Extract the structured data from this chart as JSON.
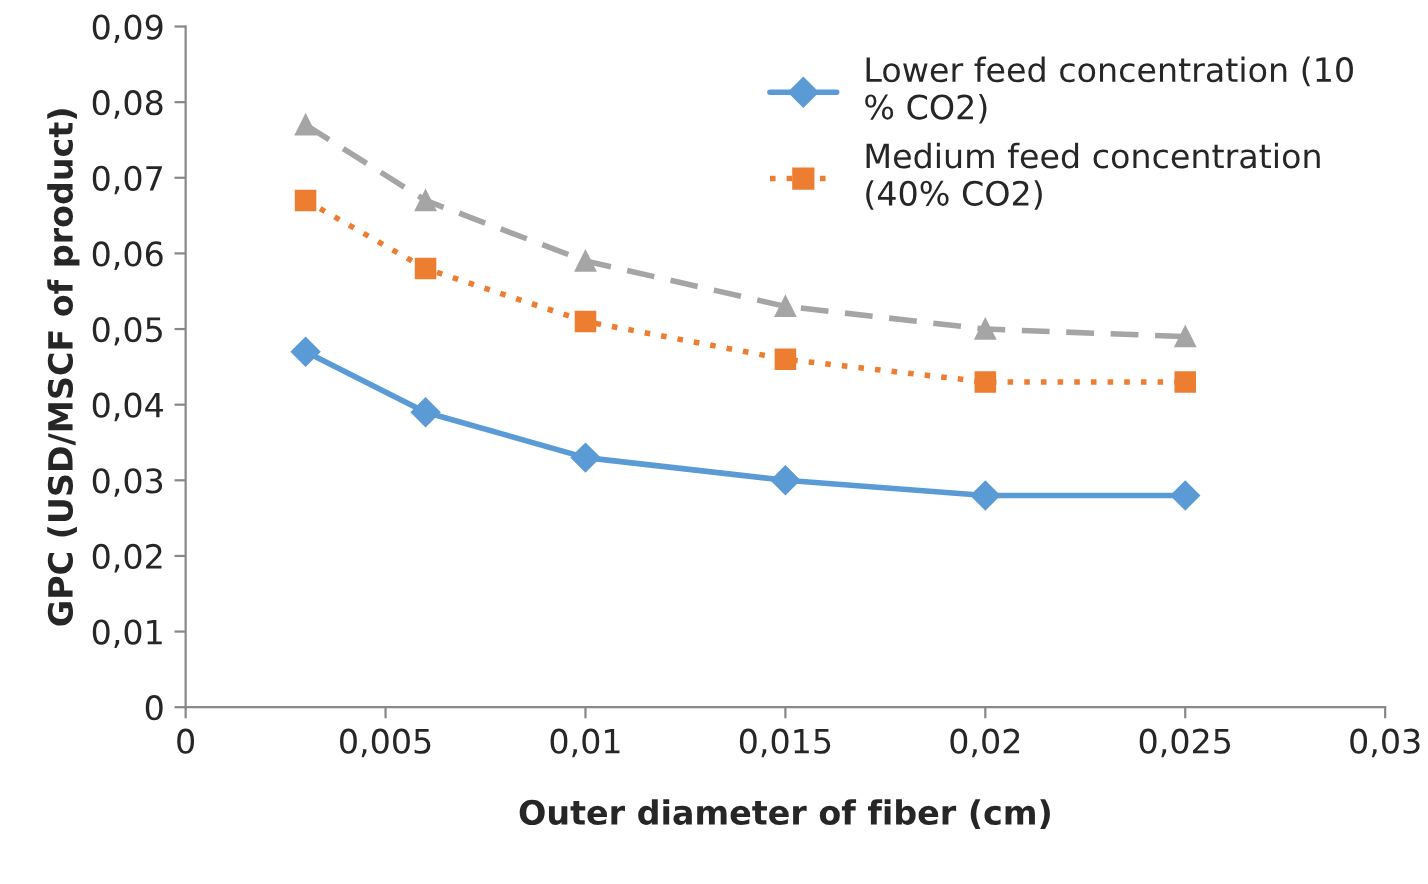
{
  "chart_data": {
    "type": "line",
    "xlabel": "Outer diameter of fiber (cm)",
    "ylabel": "GPC (USD/MSCF of product)",
    "x": [
      0.003,
      0.006,
      0.01,
      0.015,
      0.02,
      0.025
    ],
    "series": [
      {
        "name": "Lower feed concentration (10\n% CO2)",
        "color": "#5b9bd5",
        "marker": "diamond",
        "line_style": "solid",
        "values": [
          0.047,
          0.039,
          0.033,
          0.03,
          0.028,
          0.028
        ]
      },
      {
        "name": "Medium feed concentration\n(40% CO2)",
        "color": "#ed7d31",
        "marker": "square",
        "line_style": "dotted",
        "values": [
          0.067,
          0.058,
          0.051,
          0.046,
          0.043,
          0.043
        ]
      },
      {
        "color": "#a5a5a5",
        "marker": "triangle",
        "line_style": "dashed",
        "values": [
          0.077,
          0.067,
          0.059,
          0.053,
          0.05,
          0.049
        ]
      }
    ],
    "xlim": [
      0,
      0.03
    ],
    "xticks": [
      0,
      {
        "value": 0.005,
        "label": "0,005"
      },
      {
        "value": 0.01,
        "label": "0,01"
      },
      {
        "value": 0.015,
        "label": "0,015"
      },
      {
        "value": 0.02,
        "label": "0,02"
      },
      {
        "value": 0.025,
        "label": "0,025"
      },
      {
        "value": 0.03,
        "label": "0,03"
      }
    ],
    "ylim": [
      0,
      0.09
    ],
    "yticks": [
      0,
      {
        "value": 0.01,
        "label": "0,01"
      },
      {
        "value": 0.02,
        "label": "0,02"
      },
      {
        "value": 0.03,
        "label": "0,03"
      },
      {
        "value": 0.04,
        "label": "0,04"
      },
      {
        "value": 0.05,
        "label": "0,05"
      },
      {
        "value": 0.06,
        "label": "0,06"
      },
      {
        "value": 0.07,
        "label": "0,07"
      },
      {
        "value": 0.08,
        "label": "0,08"
      },
      {
        "value": 0.09,
        "label": "0,09"
      }
    ],
    "grid": false,
    "legend": "top right"
  }
}
